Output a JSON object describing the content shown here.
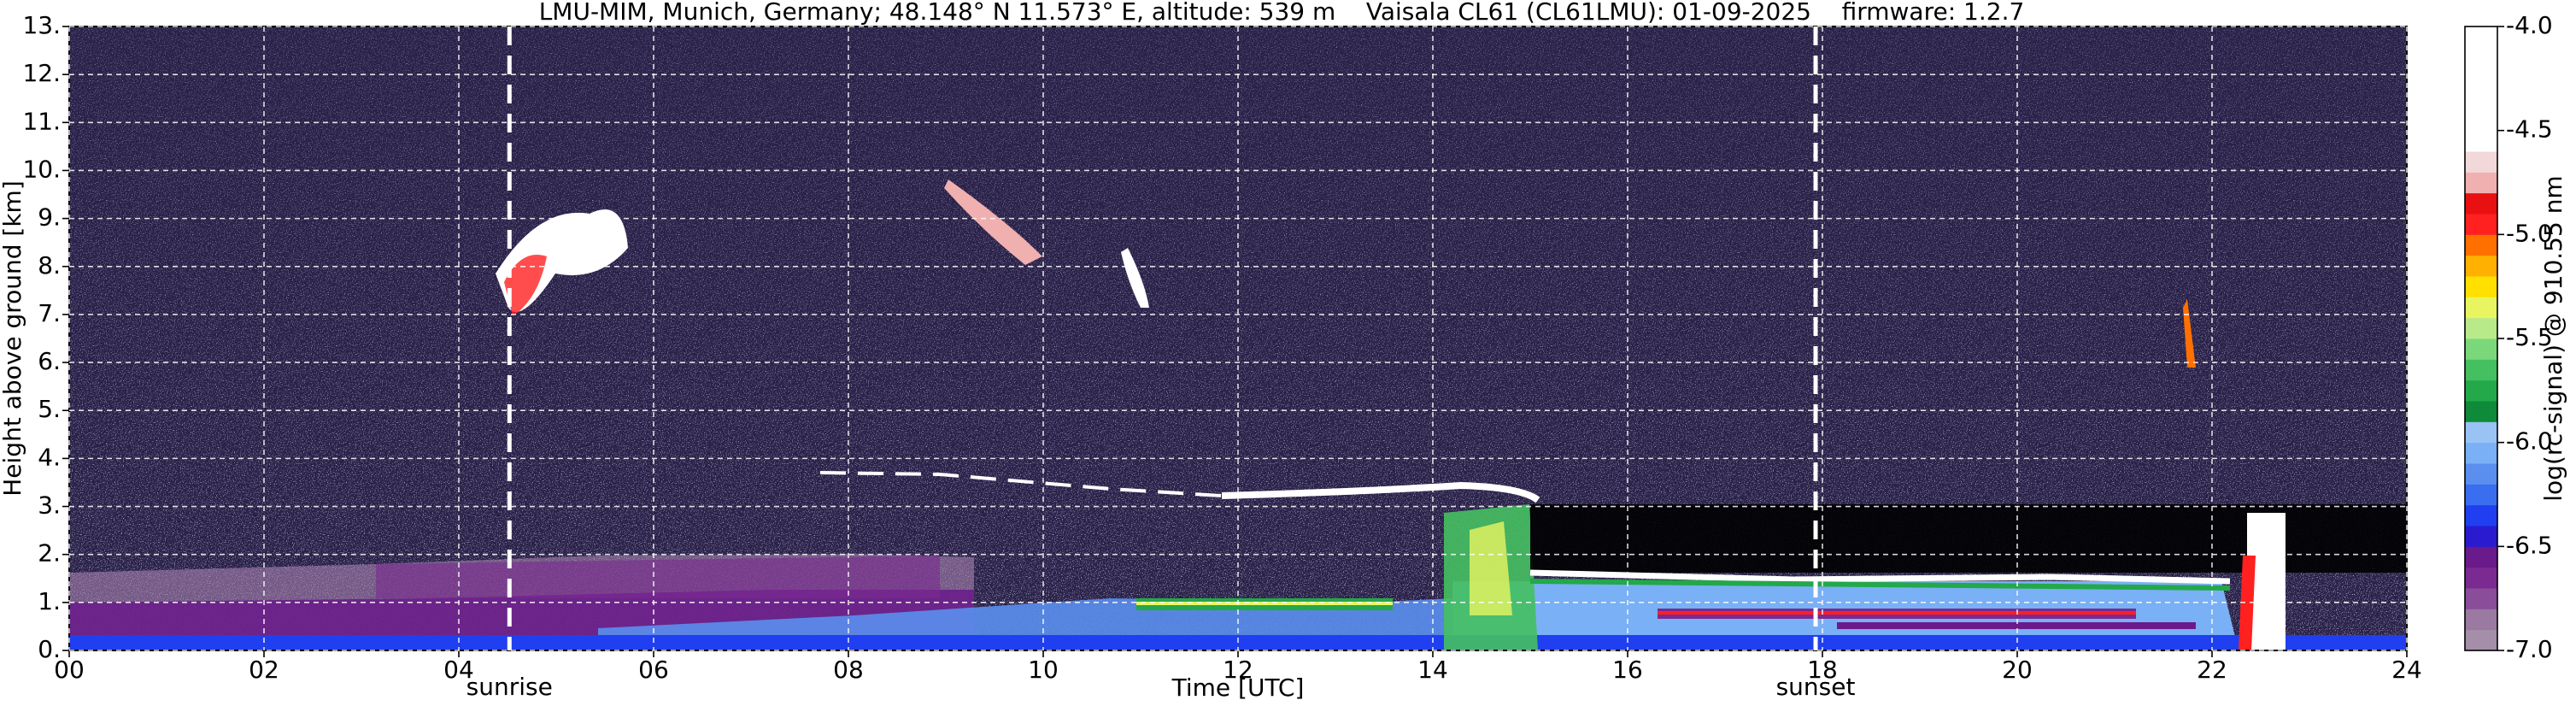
{
  "chart_data": {
    "type": "heatmap",
    "title": "LMU-MIM, Munich, Germany; 48.148° N 11.573° E, altitude: 539 m    Vaisala CL61 (CL61LMU): 01-09-2025    firmware: 1.2.7",
    "x_label": "Time [UTC]",
    "y_label": "Height above ground [km]",
    "xlim": [
      0,
      24
    ],
    "xticks": [
      {
        "value": 0,
        "label": "00"
      },
      {
        "value": 2,
        "label": "02"
      },
      {
        "value": 4,
        "label": "04"
      },
      {
        "value": 6,
        "label": "06"
      },
      {
        "value": 8,
        "label": "08"
      },
      10,
      12,
      14,
      16,
      18,
      20,
      22,
      24
    ],
    "ylim": [
      0,
      13
    ],
    "yticks": [
      {
        "value": 0,
        "label": "0."
      },
      {
        "value": 1,
        "label": "1."
      },
      {
        "value": 2,
        "label": "2."
      },
      {
        "value": 3,
        "label": "3."
      },
      {
        "value": 4,
        "label": "4."
      },
      {
        "value": 5,
        "label": "5."
      },
      {
        "value": 6,
        "label": "6."
      },
      {
        "value": 7,
        "label": "7."
      },
      {
        "value": 8,
        "label": "8."
      },
      {
        "value": 9,
        "label": "9."
      },
      {
        "value": 10,
        "label": "10."
      },
      {
        "value": 11,
        "label": "11."
      },
      {
        "value": 12,
        "label": "12."
      },
      {
        "value": 13,
        "label": "13."
      }
    ],
    "grid": true,
    "annotations": [
      {
        "text": "sunrise",
        "x": 4.52
      },
      {
        "text": "sunset",
        "x": 17.93
      }
    ],
    "colorbar": {
      "label": "log(rc-signal) @ 910.55 nm",
      "lim": [
        -7,
        -4
      ],
      "ticks": [
        {
          "value": -7,
          "label": "-7.0"
        },
        -6.5,
        {
          "value": -6,
          "label": "-6.0"
        },
        -5.5,
        {
          "value": -5,
          "label": "-5.0"
        },
        -4.5,
        {
          "value": -4,
          "label": "-4.0"
        }
      ],
      "colors": [
        "#a48ea8",
        "#9a7aa0",
        "#8a4d9a",
        "#7a2a90",
        "#6a1a8a",
        "#2a1ad0",
        "#1f3ff0",
        "#3a6ef0",
        "#5a8ff0",
        "#7ab0f5",
        "#9ac3f5",
        "#0e8a3a",
        "#23a84a",
        "#45c060",
        "#7ad87a",
        "#b8ea8a",
        "#e8f560",
        "#ffe000",
        "#ffb000",
        "#ff7000",
        "#ff2020",
        "#e81010",
        "#f0b0b0",
        "#f2d8d8",
        "#ffffff",
        "#ffffff",
        "#ffffff",
        "#ffffff",
        "#ffffff",
        "#ffffff"
      ]
    }
  }
}
